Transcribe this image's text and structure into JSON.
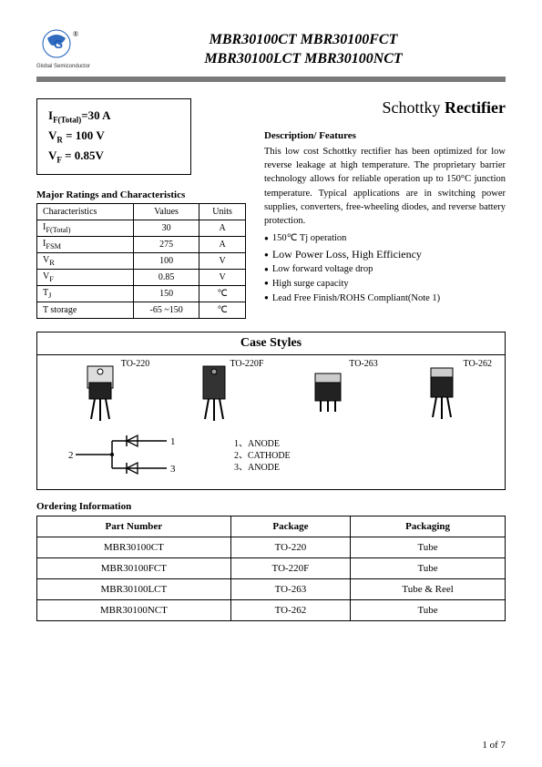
{
  "header": {
    "logo_caption": "Global Semiconductor",
    "title_line1": "MBR30100CT MBR30100FCT",
    "title_line2": "MBR30100LCT  MBR30100NCT"
  },
  "product_title_prefix": "Schottky",
  "product_title_bold": "Rectifier",
  "params": {
    "if_label": "I",
    "if_sub": "F(Total)",
    "if_value": "=30 A",
    "vr_label": "V",
    "vr_sub": "R",
    "vr_value": " = 100 V",
    "vf_label": "V",
    "vf_sub": "F",
    "vf_value": " = 0.85V"
  },
  "ratings": {
    "heading": "Major Ratings and Characteristics",
    "cols": [
      "Characteristics",
      "Values",
      "Units"
    ],
    "rows": [
      {
        "c": "I<sub>F(Total)</sub>",
        "v": "30",
        "u": "A"
      },
      {
        "c": "I<sub>FSM</sub>",
        "v": "275",
        "u": "A"
      },
      {
        "c": "V<sub>R</sub>",
        "v": "100",
        "u": "V"
      },
      {
        "c": "V<sub>F</sub>",
        "v": "0.85",
        "u": "V"
      },
      {
        "c": "T<sub>J</sub>",
        "v": "150",
        "u": "℃"
      },
      {
        "c": "T storage",
        "v": "-65 ~150",
        "u": "℃"
      }
    ]
  },
  "description": {
    "heading": "Description/ Features",
    "body": "This low cost Schottky rectifier has been optimized for low reverse leakage at high temperature. The proprietary barrier technology allows for reliable operation up to 150°C junction temperature. Typical applications are in switching power supplies, converters, free-wheeling diodes, and reverse battery protection.",
    "features": [
      "150℃ Tj operation",
      "Low Power Loss, High Efficiency",
      "Low forward voltage drop",
      "High surge capacity",
      "Lead Free Finish/ROHS Compliant(Note 1)"
    ]
  },
  "case": {
    "title": "Case Styles",
    "packages": [
      "TO-220",
      "TO-220F",
      "TO-263",
      "TO-262"
    ],
    "pin_labels": [
      "1",
      "2",
      "3"
    ],
    "pins": [
      "1、ANODE",
      "2、CATHODE",
      "3、ANODE"
    ]
  },
  "ordering": {
    "heading": "Ordering Information",
    "cols": [
      "Part Number",
      "Package",
      "Packaging"
    ],
    "rows": [
      [
        "MBR30100CT",
        "TO-220",
        "Tube"
      ],
      [
        "MBR30100FCT",
        "TO-220F",
        "Tube"
      ],
      [
        "MBR30100LCT",
        "TO-263",
        "Tube & Reel"
      ],
      [
        "MBR30100NCT",
        "TO-262",
        "Tube"
      ]
    ]
  },
  "page": "1 of 7",
  "colors": {
    "logo_blue": "#1a5bb8",
    "hr_gray": "#7a7a7a"
  }
}
